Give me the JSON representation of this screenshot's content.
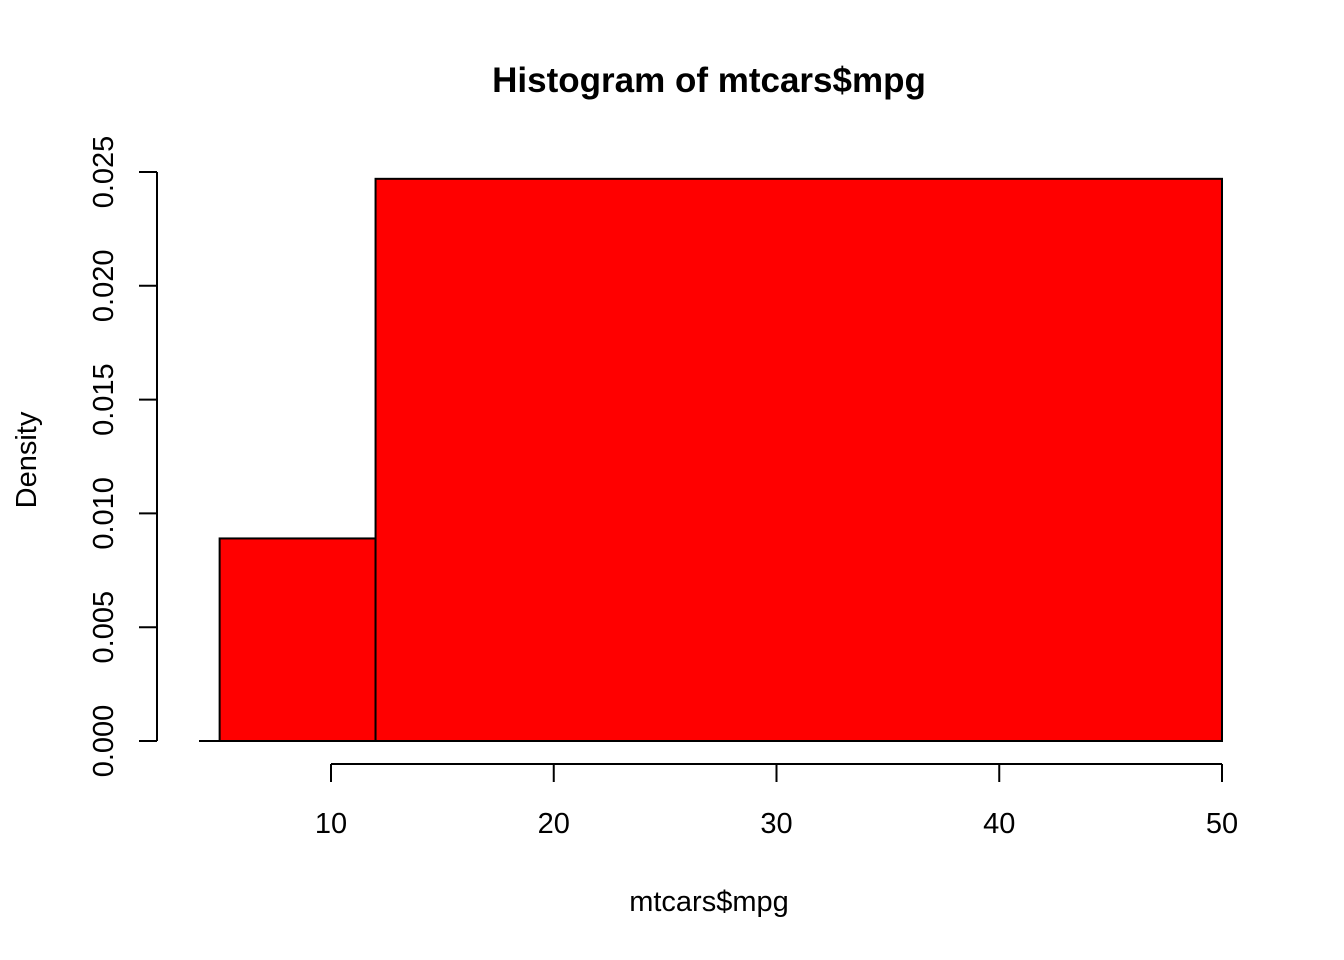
{
  "chart_data": {
    "type": "bar",
    "title": "Histogram of mtcars$mpg",
    "xlabel": "mtcars$mpg",
    "ylabel": "Density",
    "bins": [
      {
        "x0": 5,
        "x1": 12,
        "density": 0.0089
      },
      {
        "x0": 12,
        "x1": 50,
        "density": 0.0247
      }
    ],
    "xlim": [
      4,
      50
    ],
    "ylim": [
      0,
      0.025
    ],
    "x_ticks": [
      10,
      20,
      30,
      40,
      50
    ],
    "y_ticks": [
      0,
      0.005,
      0.01,
      0.015,
      0.02,
      0.025
    ],
    "x_tick_labels": [
      "10",
      "20",
      "30",
      "40",
      "50"
    ],
    "y_tick_labels": [
      "0.000",
      "0.005",
      "0.010",
      "0.015",
      "0.020",
      "0.025"
    ],
    "bar_color": "#ff0000",
    "border_color": "#000000",
    "grid": false,
    "legend": "none"
  }
}
